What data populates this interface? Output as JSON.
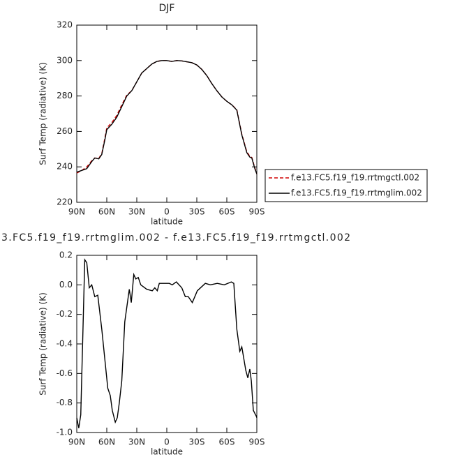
{
  "chart_data": [
    {
      "type": "line",
      "title": "DJF",
      "xlabel": "latitude",
      "ylabel": "Surf Temp (radiative) (K)",
      "x": [
        90,
        85,
        80,
        75,
        72,
        68,
        65,
        62,
        60,
        55,
        50,
        45,
        40,
        35,
        30,
        25,
        20,
        15,
        10,
        5,
        0,
        -5,
        -10,
        -15,
        -20,
        -25,
        -30,
        -35,
        -40,
        -45,
        -50,
        -55,
        -60,
        -65,
        -70,
        -75,
        -80,
        -83,
        -85,
        -88,
        -90
      ],
      "series": [
        {
          "name": "f.e13.FC5.f19_f19.rrtmgctl.002",
          "color": "#d00000",
          "linestyle": "dashed",
          "values": [
            236.5,
            238,
            240,
            243.5,
            245,
            244.8,
            247.5,
            256,
            262,
            265,
            269,
            275,
            280.5,
            283,
            288,
            293,
            295.5,
            298,
            299.5,
            300,
            300,
            299.5,
            300,
            299.8,
            299.3,
            298.8,
            297.5,
            295,
            291.5,
            287,
            283,
            279.5,
            277,
            275,
            272.3,
            258.5,
            248.5,
            246,
            245.3,
            239.5,
            236
          ]
        },
        {
          "name": "f.e13.FC5.f19_f19.rrtmglim.002",
          "color": "#000000",
          "linestyle": "solid",
          "values": [
            237,
            238,
            239,
            243,
            245,
            244.5,
            247,
            255,
            261,
            264,
            268,
            274,
            280,
            283,
            288,
            293,
            295.5,
            298,
            299.5,
            300,
            300,
            299.5,
            300,
            299.8,
            299.3,
            298.8,
            297.5,
            295,
            291.5,
            287,
            283,
            279.5,
            277,
            275,
            272,
            258,
            248,
            245.5,
            245,
            239,
            236
          ]
        }
      ],
      "xlim": [
        90,
        -90
      ],
      "xticks": [
        {
          "value": 90,
          "label": "90N"
        },
        {
          "value": 60,
          "label": "60N"
        },
        {
          "value": 30,
          "label": "30N"
        },
        0,
        {
          "value": -30,
          "label": "30S"
        },
        {
          "value": -60,
          "label": "60S"
        },
        {
          "value": -90,
          "label": "90S"
        }
      ],
      "ylim": [
        220,
        320
      ],
      "yticks": [
        220,
        240,
        260,
        280,
        300,
        320
      ],
      "legend": "right"
    },
    {
      "type": "line",
      "title": "3.FC5.f19_f19.rrtmglim.002 - f.e13.FC5.f19_f19.rrtmgctl.002",
      "xlabel": "latitude",
      "ylabel": "Surf Temp (radiative) (K)",
      "x": [
        90,
        88,
        86,
        82,
        80,
        77.5,
        75,
        72,
        69,
        65,
        62,
        59,
        56.5,
        54.5,
        51.5,
        49.5,
        47.5,
        45,
        42,
        37.5,
        35.5,
        33,
        31,
        28.5,
        26,
        20,
        14.5,
        12,
        9.5,
        7.5,
        2.5,
        -2.5,
        -5.5,
        -9.5,
        -15,
        -18.5,
        -21.5,
        -25.5,
        -30.5,
        -38.5,
        -43.5,
        -50.5,
        -57.5,
        -64.5,
        -67,
        -70,
        -73,
        -75,
        -79,
        -81,
        -83,
        -84.5,
        -86.5,
        -89.5,
        -90
      ],
      "series": [
        {
          "color": "#000000",
          "linestyle": "solid",
          "values": [
            -0.9,
            -0.97,
            -0.88,
            0.17,
            0.15,
            -0.02,
            0.0,
            -0.08,
            -0.07,
            -0.3,
            -0.5,
            -0.7,
            -0.75,
            -0.85,
            -0.93,
            -0.9,
            -0.8,
            -0.65,
            -0.25,
            -0.03,
            -0.12,
            0.07,
            0.04,
            0.05,
            0.0,
            -0.03,
            -0.04,
            -0.02,
            -0.04,
            0.01,
            0.01,
            0.01,
            0.0,
            0.02,
            -0.02,
            -0.08,
            -0.08,
            -0.12,
            -0.04,
            0.01,
            0.0,
            0.01,
            0.0,
            0.02,
            0.01,
            -0.3,
            -0.45,
            -0.42,
            -0.58,
            -0.63,
            -0.57,
            -0.65,
            -0.85,
            -0.89,
            -0.9
          ]
        }
      ],
      "xlim": [
        90,
        -90
      ],
      "xticks": [
        {
          "value": 90,
          "label": "90N"
        },
        {
          "value": 60,
          "label": "60N"
        },
        {
          "value": 30,
          "label": "30N"
        },
        0,
        {
          "value": -30,
          "label": "30S"
        },
        {
          "value": -60,
          "label": "60S"
        },
        {
          "value": -90,
          "label": "90S"
        }
      ],
      "ylim": [
        -1.0,
        0.2
      ],
      "yticks": [
        {
          "value": -1.0,
          "label": "-1.0"
        },
        {
          "value": -0.8,
          "label": "-0.8"
        },
        {
          "value": -0.6,
          "label": "-0.6"
        },
        {
          "value": -0.4,
          "label": "-0.4"
        },
        {
          "value": -0.2,
          "label": "-0.2"
        },
        {
          "value": 0.0,
          "label": "0.0"
        },
        0.2
      ]
    }
  ]
}
